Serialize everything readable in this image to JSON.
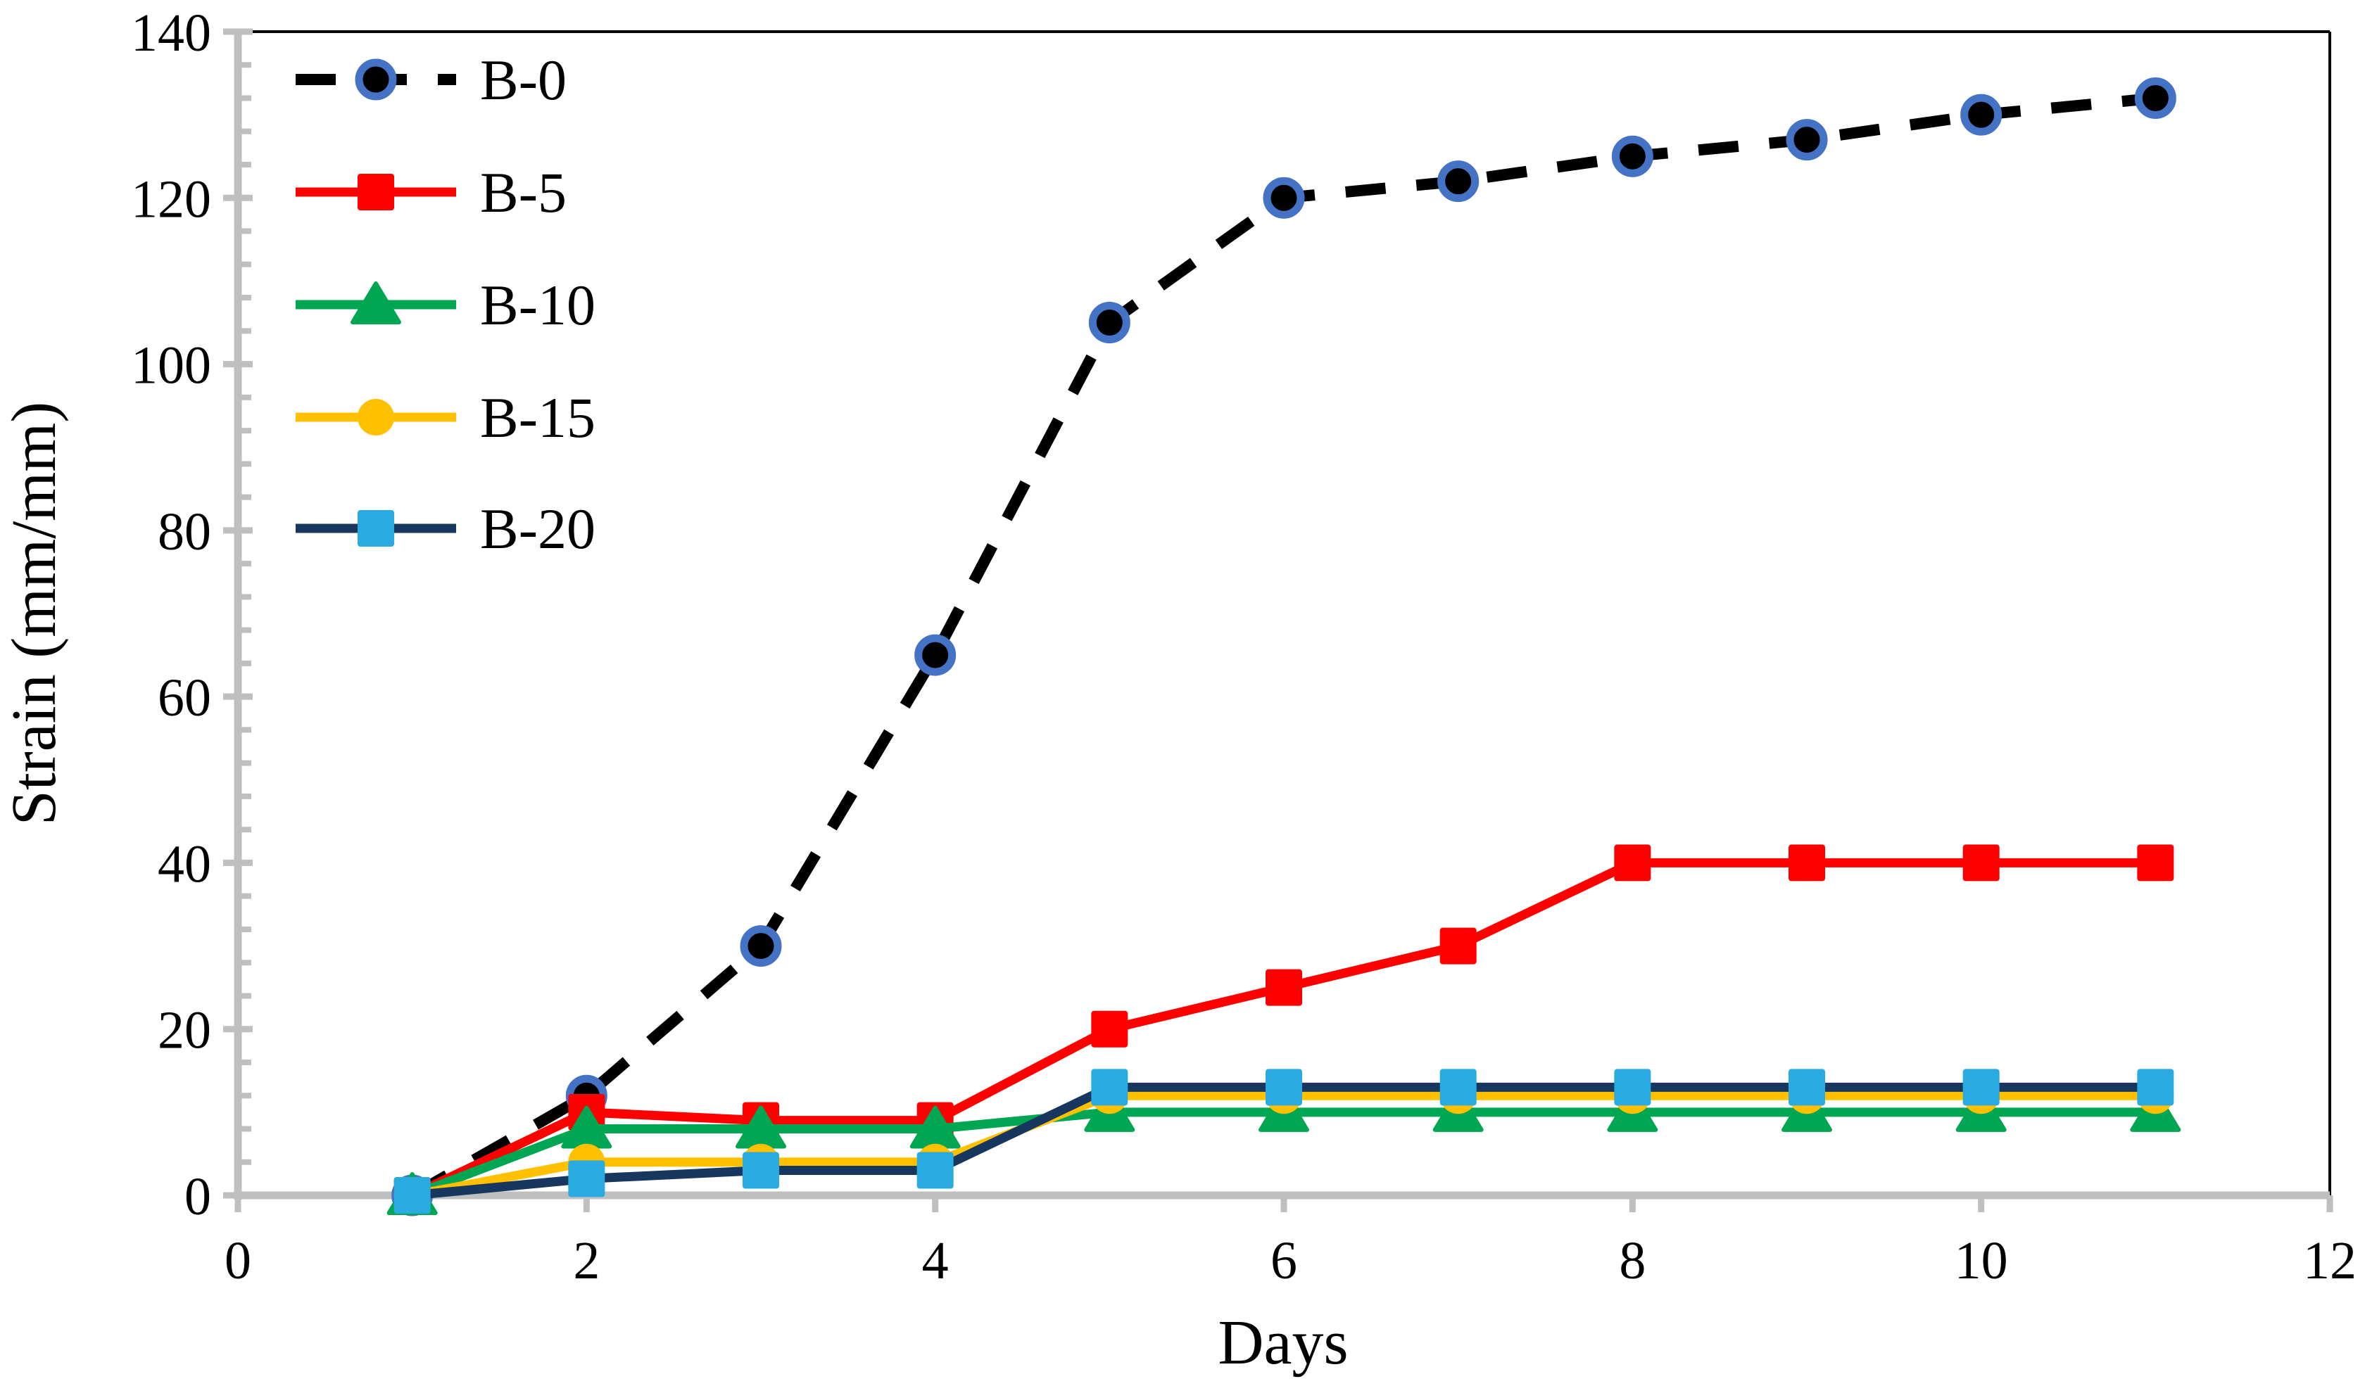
{
  "chart_data": {
    "type": "line",
    "title": "",
    "xlabel": "Days",
    "ylabel": "Strain (mm/mm)",
    "xlim": [
      0,
      12
    ],
    "ylim": [
      0,
      140
    ],
    "x_major_ticks": [
      0,
      2,
      4,
      6,
      8,
      10,
      12
    ],
    "y_major_ticks": [
      0,
      20,
      40,
      60,
      80,
      100,
      120,
      140
    ],
    "y_minor_step": 4,
    "grid": false,
    "legend_position": "top-left-inside",
    "x": [
      1,
      2,
      3,
      4,
      5,
      6,
      7,
      8,
      9,
      10,
      11
    ],
    "series": [
      {
        "name": "B-0",
        "values": [
          0,
          12,
          30,
          65,
          105,
          120,
          122,
          125,
          127,
          130,
          132
        ],
        "line_color": "#000000",
        "line_style": "dashed",
        "marker": "circle",
        "marker_fill": "#000000",
        "marker_stroke": "#4472C4"
      },
      {
        "name": "B-5",
        "values": [
          0,
          10,
          9,
          9,
          20,
          25,
          30,
          40,
          40,
          40,
          40
        ],
        "line_color": "#FF0000",
        "line_style": "solid",
        "marker": "square",
        "marker_fill": "#FF0000",
        "marker_stroke": "none"
      },
      {
        "name": "B-10",
        "values": [
          0,
          8,
          8,
          8,
          10,
          10,
          10,
          10,
          10,
          10,
          10
        ],
        "line_color": "#00A651",
        "line_style": "solid",
        "marker": "triangle",
        "marker_fill": "#00A651",
        "marker_stroke": "none"
      },
      {
        "name": "B-15",
        "values": [
          0,
          4,
          4,
          4,
          12,
          12,
          12,
          12,
          12,
          12,
          12
        ],
        "line_color": "#FFC000",
        "line_style": "solid",
        "marker": "circle",
        "marker_fill": "#FFC000",
        "marker_stroke": "none"
      },
      {
        "name": "B-20",
        "values": [
          0,
          2,
          3,
          3,
          13,
          13,
          13,
          13,
          13,
          13,
          13
        ],
        "line_color": "#17375E",
        "line_style": "solid",
        "marker": "square",
        "marker_fill": "#29ABE2",
        "marker_stroke": "none"
      }
    ],
    "colors": {
      "axis": "#BFBFBF",
      "border": "#000000",
      "tick_label": "#000000"
    }
  }
}
